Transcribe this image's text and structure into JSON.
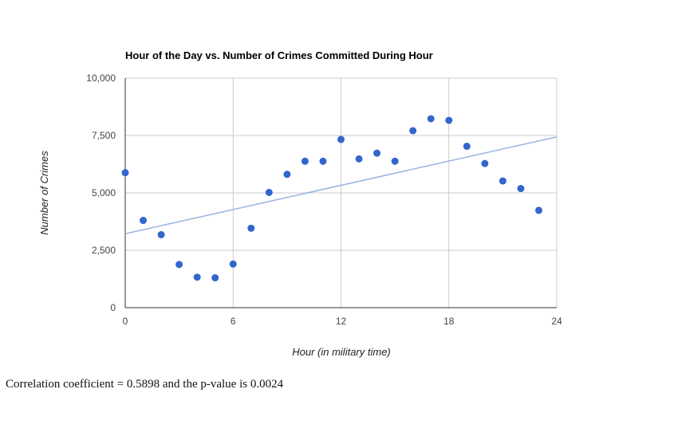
{
  "chart_data": {
    "type": "scatter",
    "title": "Hour of the Day vs. Number of Crimes Committed During Hour",
    "xlabel": "Hour (in military time)",
    "ylabel": "Number of Crimes",
    "xlim": [
      0,
      24
    ],
    "ylim": [
      0,
      10000
    ],
    "x_ticks": [
      0,
      6,
      12,
      18,
      24
    ],
    "y_ticks": [
      0,
      2500,
      5000,
      7500,
      10000
    ],
    "x_tick_labels": [
      "0",
      "6",
      "12",
      "18",
      "24"
    ],
    "y_tick_labels": [
      "0",
      "2,500",
      "5,000",
      "7,500",
      "10,000"
    ],
    "grid": true,
    "legend": "none",
    "point_color": "#3366cc",
    "trendline_color": "#9ab4e0",
    "points": [
      {
        "x": 0,
        "y": 5880
      },
      {
        "x": 1,
        "y": 3800
      },
      {
        "x": 2,
        "y": 3180
      },
      {
        "x": 3,
        "y": 1880
      },
      {
        "x": 4,
        "y": 1330
      },
      {
        "x": 5,
        "y": 1300
      },
      {
        "x": 6,
        "y": 1900
      },
      {
        "x": 7,
        "y": 3460
      },
      {
        "x": 8,
        "y": 5020
      },
      {
        "x": 9,
        "y": 5810
      },
      {
        "x": 10,
        "y": 6380
      },
      {
        "x": 11,
        "y": 6380
      },
      {
        "x": 12,
        "y": 7330
      },
      {
        "x": 13,
        "y": 6480
      },
      {
        "x": 14,
        "y": 6730
      },
      {
        "x": 15,
        "y": 6380
      },
      {
        "x": 16,
        "y": 7710
      },
      {
        "x": 17,
        "y": 8230
      },
      {
        "x": 18,
        "y": 8160
      },
      {
        "x": 19,
        "y": 7030
      },
      {
        "x": 20,
        "y": 6280
      },
      {
        "x": 21,
        "y": 5520
      },
      {
        "x": 22,
        "y": 5190
      },
      {
        "x": 23,
        "y": 4240
      }
    ],
    "trendline": {
      "x": [
        0,
        24
      ],
      "y": [
        3220,
        7440
      ]
    }
  },
  "caption": "Correlation coefficient = 0.5898 and the p-value is 0.0024"
}
